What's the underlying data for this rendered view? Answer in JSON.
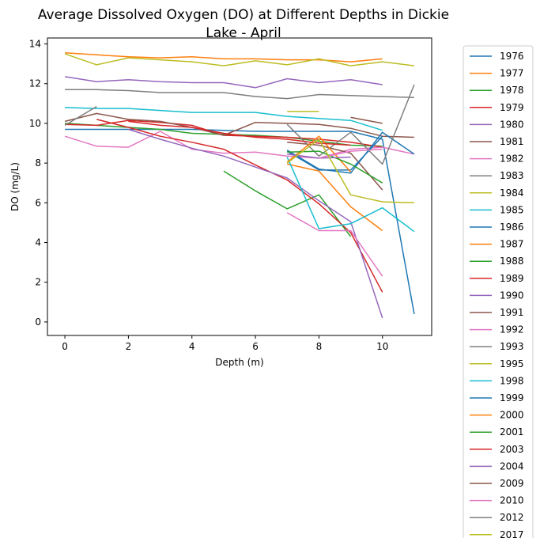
{
  "chart_data": {
    "type": "line",
    "title_line1": "Average Dissolved Oxygen (DO) at Different Depths in Dickie",
    "title_line2": "Lake - April",
    "xlabel": "Depth (m)",
    "ylabel": "DO (mg/L)",
    "xlim": [
      -0.55,
      11.55
    ],
    "ylim": [
      -0.68,
      14.3
    ],
    "xticks": [
      0,
      2,
      4,
      6,
      8,
      10
    ],
    "yticks": [
      0,
      2,
      4,
      6,
      8,
      10,
      12,
      14
    ],
    "legend_position": "outside-right",
    "series": [
      {
        "name": "1976",
        "color": "#1f77b4",
        "x": [
          0,
          1,
          2,
          3,
          4,
          5,
          6,
          7,
          8,
          9,
          10,
          11
        ],
        "y": [
          9.7,
          9.7,
          9.7,
          9.7,
          9.7,
          9.65,
          9.6,
          9.6,
          9.6,
          9.6,
          9.2,
          0.4
        ]
      },
      {
        "name": "1977",
        "color": "#ff7f0e",
        "x": [
          0,
          1,
          2,
          3,
          4,
          5,
          6,
          7,
          8,
          9,
          10
        ],
        "y": [
          13.55,
          13.45,
          13.35,
          13.3,
          13.35,
          13.25,
          13.25,
          13.2,
          13.2,
          13.1,
          13.25
        ]
      },
      {
        "name": "1978",
        "color": "#2ca02c",
        "x": [
          0,
          1,
          2,
          3,
          4,
          5,
          6,
          7,
          8,
          9,
          10
        ],
        "y": [
          10.0,
          9.9,
          9.8,
          9.7,
          9.5,
          9.45,
          9.4,
          9.3,
          9.1,
          8.9,
          8.85
        ]
      },
      {
        "name": "1979",
        "color": "#d62728",
        "x": [
          0,
          1,
          2,
          3,
          4,
          5,
          6,
          7,
          8,
          9,
          10
        ],
        "y": [
          9.95,
          9.9,
          10.15,
          10.05,
          9.9,
          9.4,
          9.35,
          9.3,
          9.2,
          9.05,
          8.8
        ]
      },
      {
        "name": "1980",
        "color": "#9467bd",
        "x": [
          0,
          1,
          2,
          3,
          4,
          5,
          6,
          7,
          8,
          9,
          10
        ],
        "y": [
          12.35,
          12.1,
          12.2,
          12.1,
          12.05,
          12.05,
          11.8,
          12.25,
          12.05,
          12.2,
          11.95
        ]
      },
      {
        "name": "1981",
        "color": "#8c564b",
        "x": [
          0,
          1,
          2,
          3,
          4,
          5,
          6,
          7,
          8,
          9,
          10,
          11
        ],
        "y": [
          10.1,
          10.5,
          10.2,
          10.1,
          9.8,
          9.4,
          10.05,
          10.0,
          9.95,
          9.75,
          9.35,
          9.3
        ]
      },
      {
        "name": "1982",
        "color": "#e377c2",
        "x": [
          0,
          1,
          2,
          3,
          4,
          5,
          6,
          7,
          8,
          9,
          10,
          11
        ],
        "y": [
          9.35,
          8.85,
          8.8,
          9.6,
          8.7,
          8.5,
          8.55,
          8.35,
          8.25,
          8.7,
          8.8,
          8.45
        ]
      },
      {
        "name": "1983",
        "color": "#7f7f7f",
        "x": [
          0,
          1,
          2,
          3,
          4,
          5,
          6,
          7,
          8,
          9,
          10,
          11
        ],
        "y": [
          11.7,
          11.7,
          11.65,
          11.55,
          11.55,
          11.55,
          11.35,
          11.25,
          11.45,
          11.4,
          11.35,
          11.3
        ]
      },
      {
        "name": "1984",
        "color": "#bcbd22",
        "x": [
          0,
          1,
          2,
          3,
          4,
          5,
          6,
          7,
          8,
          9,
          10,
          11
        ],
        "y": [
          13.5,
          12.95,
          13.3,
          13.2,
          13.1,
          12.9,
          13.15,
          12.95,
          13.25,
          12.9,
          13.1,
          12.9
        ]
      },
      {
        "name": "1985",
        "color": "#17becf",
        "x": [
          0,
          1,
          2,
          3,
          4,
          5,
          6,
          7,
          8,
          9,
          10
        ],
        "y": [
          10.8,
          10.75,
          10.75,
          10.65,
          10.55,
          10.55,
          10.55,
          10.35,
          10.25,
          10.15,
          9.65
        ]
      },
      {
        "name": "1986",
        "color": "#1f77b4",
        "x": [
          7,
          8,
          9,
          10,
          11
        ],
        "y": [
          8.65,
          7.7,
          7.5,
          9.55,
          8.45
        ]
      },
      {
        "name": "1987",
        "color": "#ff7f0e",
        "x": [
          7,
          8,
          9,
          10
        ],
        "y": [
          7.95,
          7.6,
          5.8,
          4.6
        ]
      },
      {
        "name": "1988",
        "color": "#2ca02c",
        "x": [
          5,
          6,
          7,
          8,
          9,
          10
        ],
        "y": [
          7.6,
          6.6,
          5.7,
          6.4,
          4.3,
          null
        ]
      },
      {
        "name": "1989",
        "color": "#d62728",
        "x": [
          1,
          2,
          3,
          4,
          5,
          6,
          7,
          8,
          9,
          10
        ],
        "y": [
          10.2,
          9.8,
          9.35,
          9.05,
          8.7,
          7.9,
          7.15,
          5.95,
          4.5,
          1.5
        ]
      },
      {
        "name": "1990",
        "color": "#9467bd",
        "x": [
          2,
          3,
          4,
          5,
          6,
          7,
          8,
          9,
          10
        ],
        "y": [
          9.7,
          9.2,
          8.75,
          8.35,
          7.8,
          7.25,
          6.1,
          5.05,
          0.2
        ]
      },
      {
        "name": "1991",
        "color": "#8c564b",
        "x": [
          7,
          8,
          9,
          10
        ],
        "y": [
          9.05,
          8.9,
          8.5,
          6.65
        ]
      },
      {
        "name": "1992",
        "color": "#e377c2",
        "x": [
          7,
          8,
          9,
          10
        ],
        "y": [
          5.5,
          4.6,
          4.6,
          2.3
        ]
      },
      {
        "name": "1993",
        "color": "#7f7f7f",
        "x": [
          7,
          8,
          9,
          10,
          11
        ],
        "y": [
          9.95,
          8.35,
          9.55,
          7.95,
          11.95
        ]
      },
      {
        "name": "1995",
        "color": "#bcbd22",
        "x": [
          7,
          8
        ],
        "y": [
          10.6,
          10.6
        ]
      },
      {
        "name": "1998",
        "color": "#17becf",
        "x": [
          7,
          8,
          9,
          10,
          11
        ],
        "y": [
          8.3,
          4.7,
          4.95,
          5.75,
          4.55
        ]
      },
      {
        "name": "1999",
        "color": "#1f77b4",
        "x": [
          7,
          8,
          9,
          10
        ],
        "y": [
          8.6,
          7.65,
          7.65,
          9.35
        ]
      },
      {
        "name": "2000",
        "color": "#ff7f0e",
        "x": [
          7,
          8,
          9
        ],
        "y": [
          8.05,
          9.35,
          7.55
        ]
      },
      {
        "name": "2001",
        "color": "#2ca02c",
        "x": [
          7,
          8,
          9,
          10
        ],
        "y": [
          8.55,
          8.6,
          7.95,
          7.0
        ]
      },
      {
        "name": "2003",
        "color": "#d62728",
        "x": [
          2,
          3,
          4,
          5,
          6,
          7,
          8,
          9
        ],
        "y": [
          10.1,
          9.9,
          9.8,
          9.5,
          9.3,
          9.2,
          9.0,
          8.9
        ]
      },
      {
        "name": "2004",
        "color": "#9467bd",
        "x": [
          7,
          8,
          9
        ],
        "y": [
          8.45,
          8.25,
          8.3
        ]
      },
      {
        "name": "2009",
        "color": "#8c564b",
        "x": [
          9,
          10
        ],
        "y": [
          10.3,
          10.0
        ]
      },
      {
        "name": "2010",
        "color": "#e377c2",
        "x": [
          8,
          9,
          10
        ],
        "y": [
          8.25,
          8.6,
          8.7
        ]
      },
      {
        "name": "2012",
        "color": "#7f7f7f",
        "x": [
          0,
          1
        ],
        "y": [
          9.9,
          10.85
        ]
      },
      {
        "name": "2017",
        "color": "#bcbd22",
        "x": [
          7,
          8,
          9,
          10,
          11
        ],
        "y": [
          8.0,
          9.2,
          6.4,
          6.05,
          6.0
        ]
      }
    ]
  }
}
